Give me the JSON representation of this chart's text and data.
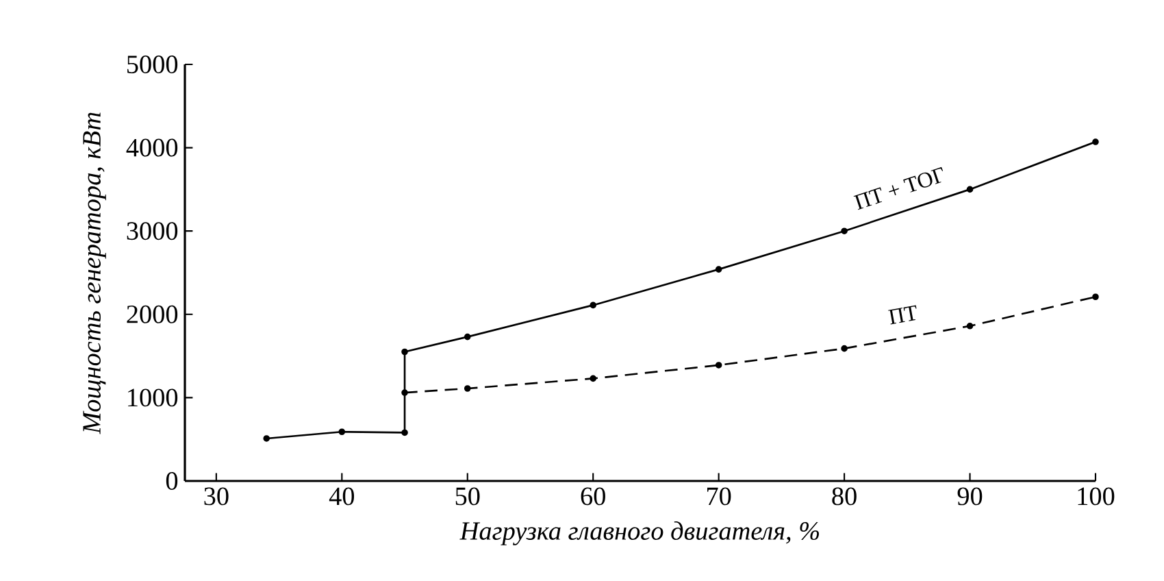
{
  "chart_data": {
    "type": "line",
    "xlabel": "Нагрузка главного двигателя, %",
    "ylabel": "Мощность генератора, кВт",
    "xlim": [
      27.5,
      100
    ],
    "xticks": [
      30,
      40,
      50,
      60,
      70,
      80,
      90,
      100
    ],
    "ylim": [
      0,
      5000
    ],
    "yticks": [
      0,
      1000,
      2000,
      3000,
      4000,
      5000
    ],
    "grid": false,
    "legend": false,
    "marker": "circle",
    "series": [
      {
        "name": "ПТ + ТОГ",
        "color": "#000000",
        "line_style": "solid",
        "x": [
          34,
          40,
          45,
          45,
          50,
          60,
          70,
          80,
          90,
          100
        ],
        "values": [
          510,
          590,
          580,
          1550,
          1730,
          2110,
          2540,
          3000,
          3500,
          4070
        ]
      },
      {
        "name": "ПТ",
        "color": "#000000",
        "line_style": "dashed",
        "x": [
          45,
          50,
          60,
          70,
          80,
          90,
          100
        ],
        "values": [
          1060,
          1110,
          1230,
          1390,
          1590,
          1860,
          2210
        ]
      }
    ]
  }
}
